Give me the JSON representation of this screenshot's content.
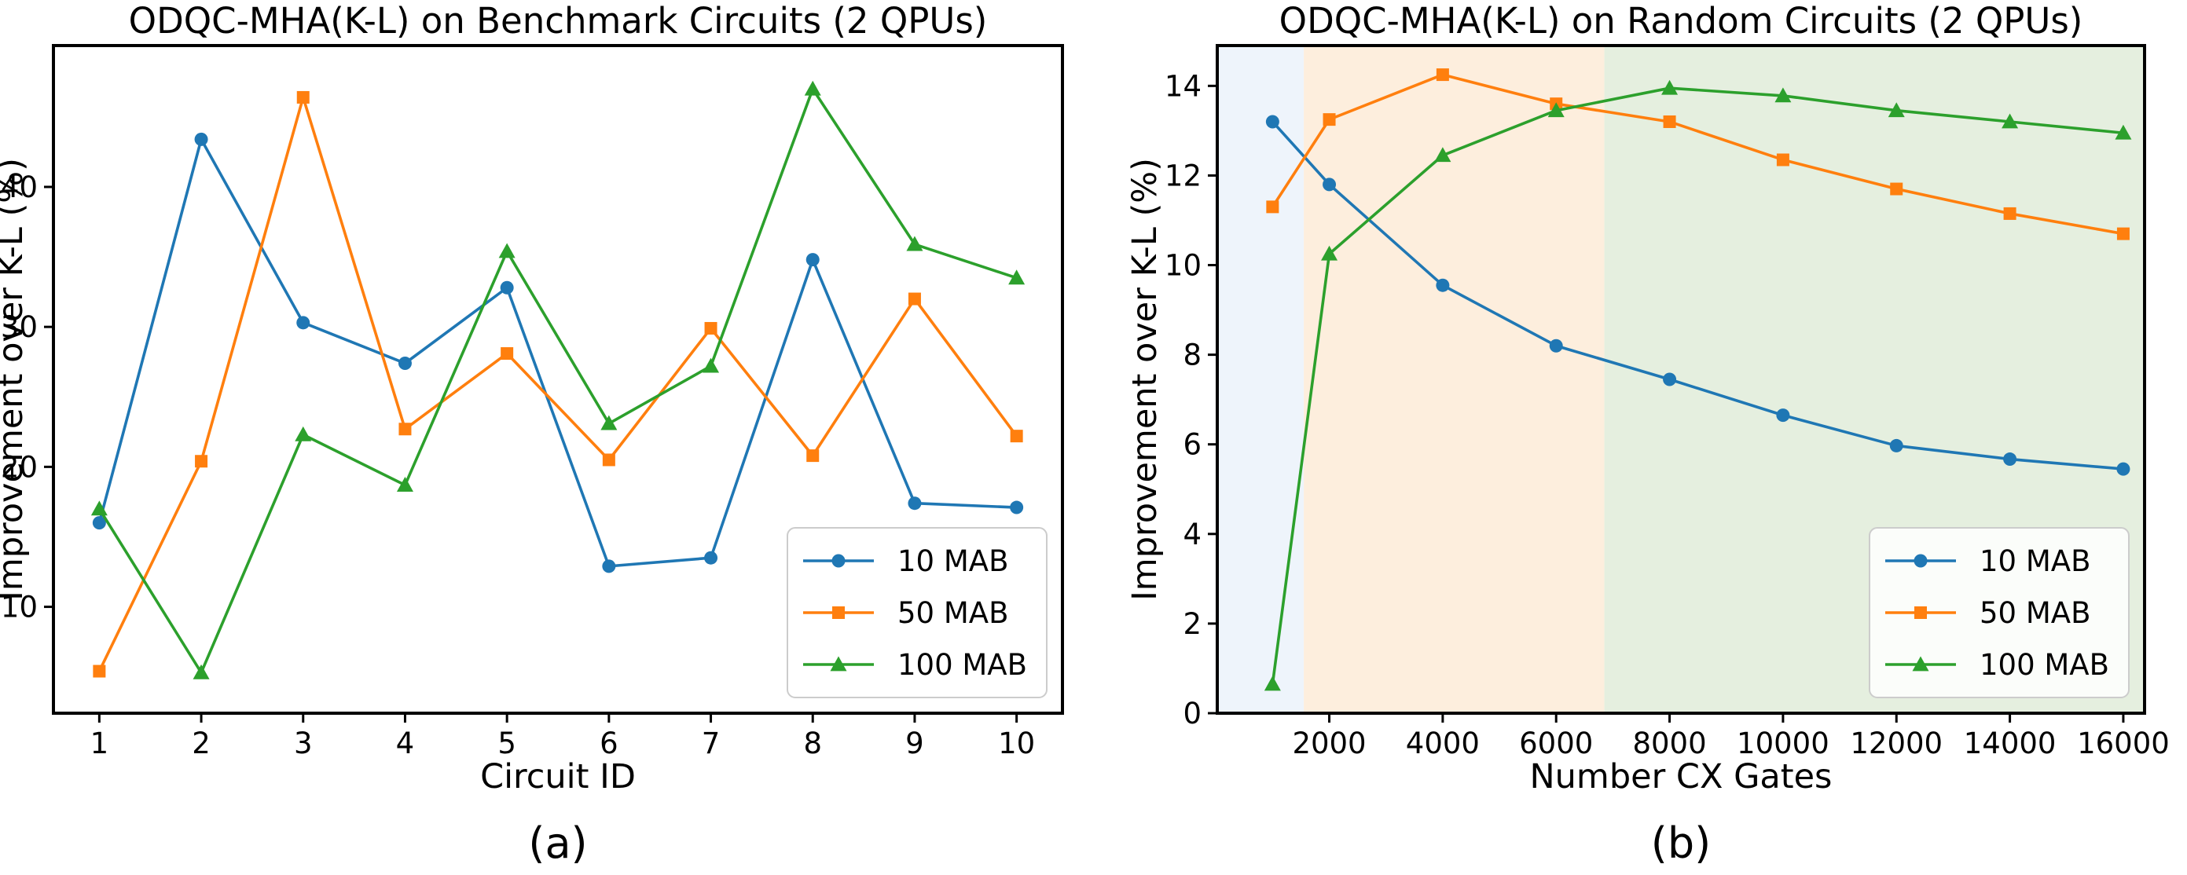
{
  "colors": {
    "series_10": "#1f77b4",
    "series_50": "#ff7f0e",
    "series_100": "#2ca02c",
    "band_blue": "#eef4fb",
    "band_orange": "#fdeedd",
    "band_green": "#e5efdf"
  },
  "chart_data": [
    {
      "type": "line",
      "title": "ODQC-MHA(K-L) on Benchmark Circuits (2 QPUs)",
      "xlabel": "Circuit ID",
      "ylabel": "Improvement over K-L (%)",
      "caption": "(a)",
      "x": [
        1,
        2,
        3,
        4,
        5,
        6,
        7,
        8,
        9,
        10
      ],
      "xticks": [
        1,
        2,
        3,
        4,
        5,
        6,
        7,
        8,
        9,
        10
      ],
      "xlim": [
        0.55,
        10.45
      ],
      "yticks": [
        10,
        20,
        30,
        40
      ],
      "ylim": [
        2.4,
        50.1
      ],
      "legend_position": "lower right",
      "series": [
        {
          "name": "10 MAB",
          "marker": "circle",
          "color_key": "series_10",
          "values": [
            16.0,
            43.4,
            30.3,
            27.4,
            32.8,
            12.9,
            13.5,
            34.8,
            17.4,
            17.1
          ]
        },
        {
          "name": "50 MAB",
          "marker": "square",
          "color_key": "series_50",
          "values": [
            5.4,
            20.4,
            46.4,
            22.7,
            28.1,
            20.5,
            29.9,
            20.8,
            32.0,
            22.2
          ]
        },
        {
          "name": "100 MAB",
          "marker": "triangle",
          "color_key": "series_100",
          "values": [
            17.0,
            5.3,
            22.3,
            18.7,
            35.4,
            23.1,
            27.2,
            47.0,
            35.9,
            33.5
          ]
        }
      ]
    },
    {
      "type": "line",
      "title": "ODQC-MHA(K-L) on Random Circuits (2 QPUs)",
      "xlabel": "Number CX Gates",
      "ylabel": "Improvement over K-L (%)",
      "caption": "(b)",
      "x": [
        1000,
        2000,
        4000,
        6000,
        8000,
        10000,
        12000,
        14000,
        16000
      ],
      "xticks": [
        2000,
        4000,
        6000,
        8000,
        10000,
        12000,
        14000,
        16000
      ],
      "xlim": [
        25,
        16375
      ],
      "yticks": [
        0,
        2,
        4,
        6,
        8,
        10,
        12,
        14
      ],
      "ylim": [
        0,
        14.9
      ],
      "legend_position": "lower right",
      "shaded_regions": [
        {
          "x_start": 25,
          "x_end": 1550,
          "color_key": "band_blue"
        },
        {
          "x_start": 1550,
          "x_end": 6850,
          "color_key": "band_orange"
        },
        {
          "x_start": 6850,
          "x_end": 16375,
          "color_key": "band_green"
        }
      ],
      "series": [
        {
          "name": "10 MAB",
          "marker": "circle",
          "color_key": "series_10",
          "values": [
            13.2,
            11.8,
            9.55,
            8.2,
            7.45,
            6.65,
            5.97,
            5.67,
            5.45
          ]
        },
        {
          "name": "50 MAB",
          "marker": "square",
          "color_key": "series_50",
          "values": [
            11.3,
            13.25,
            14.25,
            13.6,
            13.2,
            12.35,
            11.7,
            11.15,
            10.7
          ]
        },
        {
          "name": "100 MAB",
          "marker": "triangle",
          "color_key": "series_100",
          "values": [
            0.65,
            10.25,
            12.45,
            13.45,
            13.95,
            13.78,
            13.45,
            13.2,
            12.95
          ]
        }
      ]
    }
  ]
}
